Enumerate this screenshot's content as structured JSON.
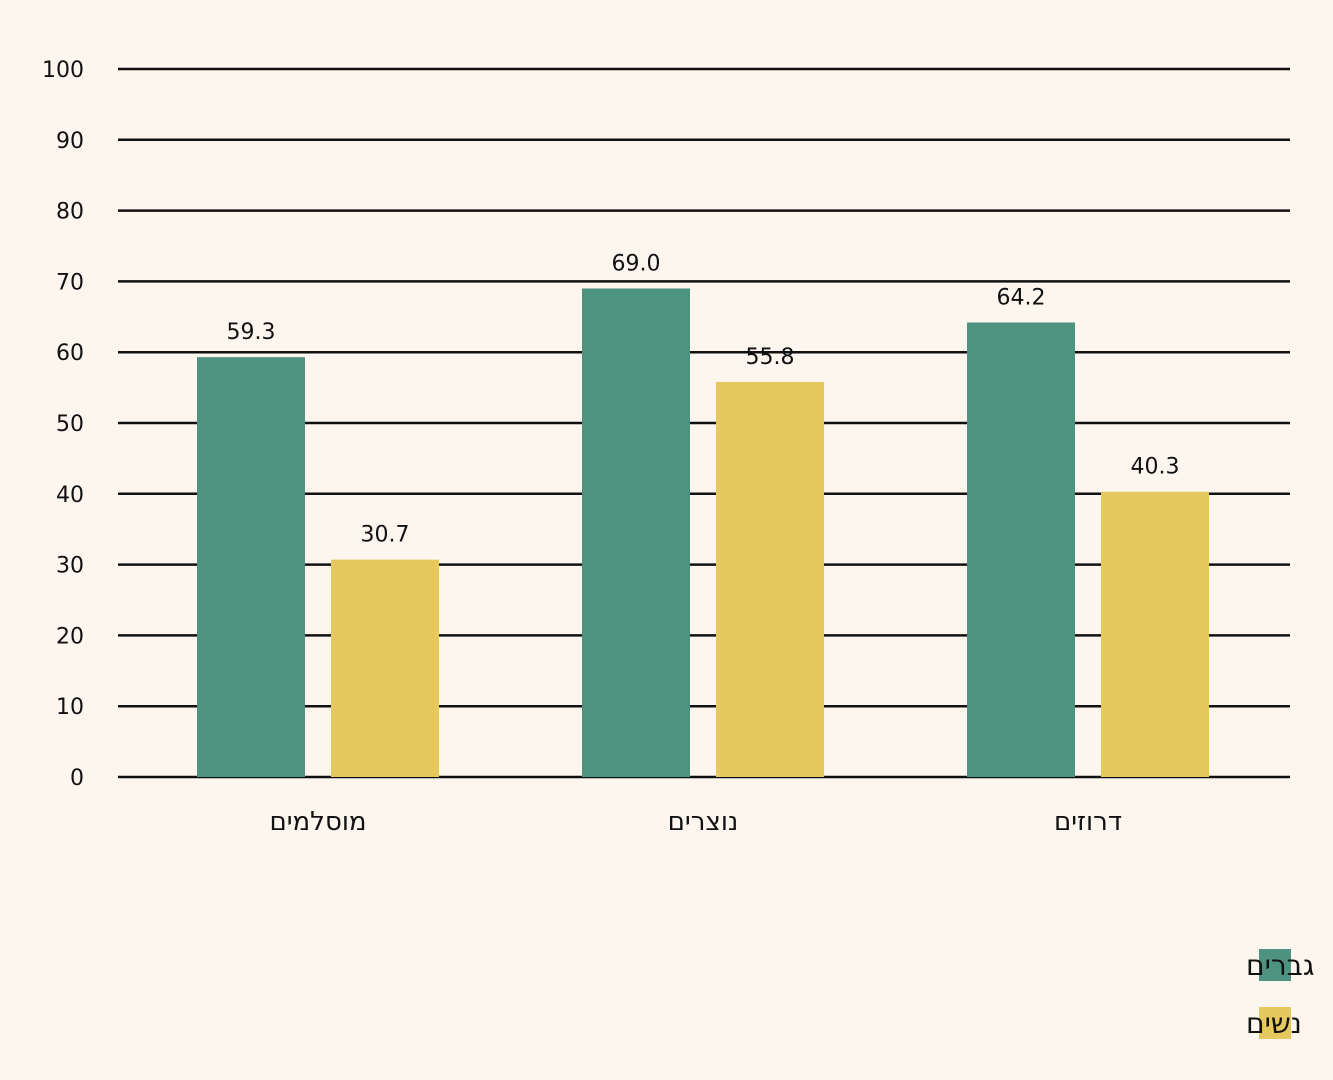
{
  "chart_data": {
    "type": "bar",
    "categories": [
      "מוסלמים",
      "נוצרים",
      "דרוזים"
    ],
    "series": [
      {
        "name": "גברים",
        "values": [
          59.3,
          69.0,
          64.2
        ],
        "labels": [
          "59.3",
          "69.0",
          "64.2"
        ],
        "color": "#4e9380"
      },
      {
        "name": "נשים",
        "values": [
          30.7,
          55.8,
          40.3
        ],
        "labels": [
          "30.7",
          "55.8",
          "40.3"
        ],
        "color": "#e5c85e"
      }
    ],
    "ylim": [
      0,
      100
    ],
    "yticks": [
      "0",
      "10",
      "20",
      "30",
      "40",
      "50",
      "60",
      "70",
      "80",
      "90",
      "100"
    ],
    "grid": true,
    "legend_position": "bottom-right"
  }
}
